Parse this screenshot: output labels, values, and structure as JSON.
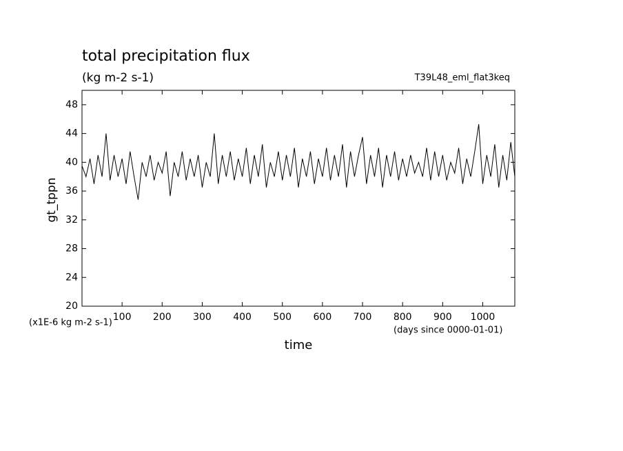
{
  "chart_data": {
    "type": "line",
    "title": "total precipitation flux",
    "subtitle": "(kg m-2 s-1)",
    "annotation": "T39L48_eml_flat3keq",
    "ylabel": "gt_tppn",
    "xlabel": "time",
    "yunit": "(x1E-6 kg m-2 s-1)",
    "xunit": "(days since 0000-01-01)",
    "color": "#000000",
    "x": [
      0,
      10,
      20,
      30,
      40,
      50,
      60,
      70,
      80,
      90,
      100,
      110,
      120,
      130,
      140,
      150,
      160,
      170,
      180,
      190,
      200,
      210,
      220,
      230,
      240,
      250,
      260,
      270,
      280,
      290,
      300,
      310,
      320,
      330,
      340,
      350,
      360,
      370,
      380,
      390,
      400,
      410,
      420,
      430,
      440,
      450,
      460,
      470,
      480,
      490,
      500,
      510,
      520,
      530,
      540,
      550,
      560,
      570,
      580,
      590,
      600,
      610,
      620,
      630,
      640,
      650,
      660,
      670,
      680,
      690,
      700,
      710,
      720,
      730,
      740,
      750,
      760,
      770,
      780,
      790,
      800,
      810,
      820,
      830,
      840,
      850,
      860,
      870,
      880,
      890,
      900,
      910,
      920,
      930,
      940,
      950,
      960,
      970,
      980,
      990,
      1000,
      1010,
      1020,
      1030,
      1040,
      1050,
      1060,
      1070,
      1080
    ],
    "values": [
      39.5,
      38,
      40.5,
      37,
      41,
      38,
      44,
      37.5,
      41,
      38,
      40.5,
      37,
      41.5,
      38,
      34.8,
      40,
      38,
      41,
      37.5,
      40,
      38.5,
      41.5,
      35.3,
      40,
      38,
      41.5,
      37.5,
      40.5,
      38,
      41,
      36.5,
      40,
      38,
      44,
      37,
      41,
      38,
      41.5,
      37.5,
      40.5,
      38,
      42,
      37,
      41,
      38,
      42.5,
      36.5,
      40,
      38,
      41.5,
      37.5,
      41,
      38,
      42,
      36.5,
      40.5,
      38,
      41.5,
      37,
      40.5,
      38,
      42,
      37.5,
      41,
      38,
      42.5,
      36.5,
      41.5,
      38,
      41,
      43.5,
      37,
      41,
      38,
      42,
      36.5,
      41,
      38,
      41.5,
      37.5,
      40.5,
      38,
      41,
      38.5,
      40,
      38,
      42,
      37.5,
      41.5,
      38,
      41,
      37.5,
      40,
      38.5,
      42,
      37,
      40.5,
      38,
      41.5,
      45.3,
      37,
      41,
      38,
      42.5,
      36.5,
      41,
      37.5,
      42.8,
      38
    ],
    "xlim": [
      0,
      1080
    ],
    "ylim": [
      20,
      50
    ],
    "xticks": [
      100,
      200,
      300,
      400,
      500,
      600,
      700,
      800,
      900,
      1000
    ],
    "yticks": [
      20,
      24,
      28,
      32,
      36,
      40,
      44,
      48
    ]
  }
}
